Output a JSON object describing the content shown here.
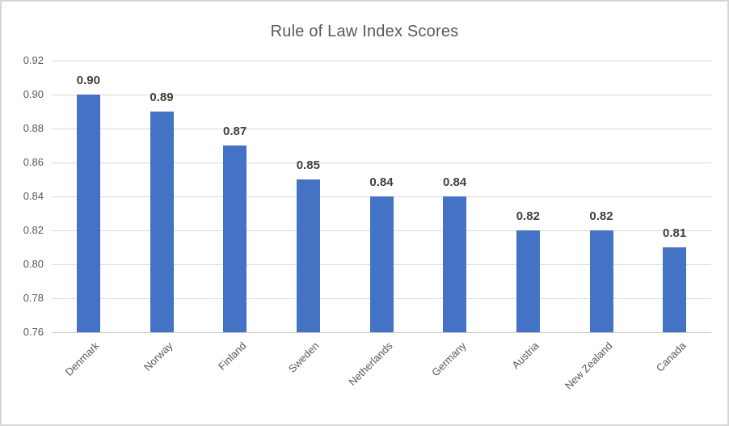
{
  "chart_data": {
    "type": "bar",
    "title": "Rule of Law Index Scores",
    "categories": [
      "Denmark",
      "Norway",
      "Finland",
      "Sweden",
      "Netherlands",
      "Germany",
      "Austria",
      "New Zealand",
      "Canada"
    ],
    "values": [
      0.9,
      0.89,
      0.87,
      0.85,
      0.84,
      0.84,
      0.82,
      0.82,
      0.81
    ],
    "data_labels": [
      "0.90",
      "0.89",
      "0.87",
      "0.85",
      "0.84",
      "0.84",
      "0.82",
      "0.82",
      "0.81"
    ],
    "ytick_labels": [
      "0.76",
      "0.78",
      "0.80",
      "0.82",
      "0.84",
      "0.86",
      "0.88",
      "0.90",
      "0.92"
    ],
    "xlabel": "",
    "ylabel": "",
    "ylim": [
      0.76,
      0.92
    ],
    "ytick_step": 0.02,
    "grid": true,
    "legend": "none"
  },
  "colors": {
    "bar": "#4472C4",
    "gridline": "#D9D9D9",
    "axis_line": "#C9C9C9",
    "title_text": "#595959",
    "tick_text": "#595959",
    "data_label_text": "#404040",
    "frame_border": "#D6D6D6",
    "background": "#FFFFFF"
  }
}
